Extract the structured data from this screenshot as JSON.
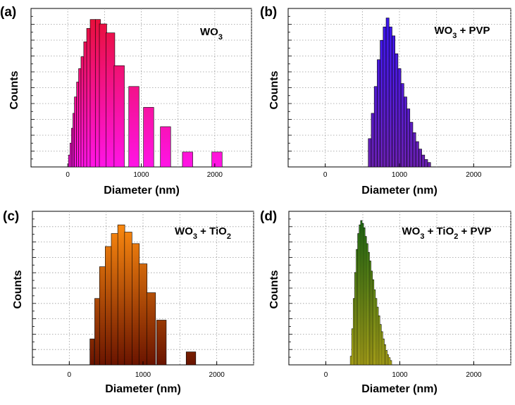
{
  "chart_data": [
    {
      "type": "bar",
      "panel_label": "(a)",
      "title_parts": [
        {
          "t": "WO"
        },
        {
          "t": "3",
          "sub": true
        }
      ],
      "xlabel": "Diameter (nm)",
      "ylabel": "Counts",
      "xlim": [
        -500,
        2500
      ],
      "xticks": [
        0,
        1000,
        2000
      ],
      "ylim": [
        0,
        100
      ],
      "grid": true,
      "colors": {
        "top": "#e8103a",
        "bottom": "#ff14e6"
      },
      "bars": [
        {
          "x": 20,
          "w": 20,
          "v": 8
        },
        {
          "x": 40,
          "w": 20,
          "v": 16
        },
        {
          "x": 60,
          "w": 20,
          "v": 26
        },
        {
          "x": 80,
          "w": 20,
          "v": 36
        },
        {
          "x": 105,
          "w": 30,
          "v": 47
        },
        {
          "x": 135,
          "w": 30,
          "v": 57
        },
        {
          "x": 165,
          "w": 35,
          "v": 66
        },
        {
          "x": 200,
          "w": 40,
          "v": 74
        },
        {
          "x": 240,
          "w": 45,
          "v": 84
        },
        {
          "x": 285,
          "w": 55,
          "v": 93
        },
        {
          "x": 340,
          "w": 70,
          "v": 99
        },
        {
          "x": 410,
          "w": 70,
          "v": 99
        },
        {
          "x": 480,
          "w": 100,
          "v": 96
        },
        {
          "x": 580,
          "w": 120,
          "v": 90
        },
        {
          "x": 700,
          "w": 140,
          "v": 68
        },
        {
          "x": 900,
          "w": 140,
          "v": 54
        },
        {
          "x": 1100,
          "w": 140,
          "v": 40
        },
        {
          "x": 1330,
          "w": 140,
          "v": 27
        },
        {
          "x": 1630,
          "w": 140,
          "v": 10
        },
        {
          "x": 2030,
          "w": 140,
          "v": 10
        }
      ]
    },
    {
      "type": "bar",
      "panel_label": "(b)",
      "title_parts": [
        {
          "t": "WO"
        },
        {
          "t": "3",
          "sub": true
        },
        {
          "t": " + PVP"
        }
      ],
      "xlabel": "Diameter (nm)",
      "ylabel": "Counts",
      "xlim": [
        -500,
        2500
      ],
      "xticks": [
        0,
        1000,
        2000
      ],
      "ylim": [
        0,
        100
      ],
      "grid": true,
      "colors": {
        "top": "#3a16f0",
        "bottom": "#6a20b0"
      },
      "bars": [
        {
          "x": 600,
          "w": 40,
          "v": 19
        },
        {
          "x": 640,
          "w": 40,
          "v": 36
        },
        {
          "x": 680,
          "w": 40,
          "v": 54
        },
        {
          "x": 720,
          "w": 40,
          "v": 72
        },
        {
          "x": 760,
          "w": 40,
          "v": 85
        },
        {
          "x": 800,
          "w": 40,
          "v": 94
        },
        {
          "x": 840,
          "w": 40,
          "v": 100
        },
        {
          "x": 880,
          "w": 40,
          "v": 94
        },
        {
          "x": 920,
          "w": 40,
          "v": 88
        },
        {
          "x": 960,
          "w": 40,
          "v": 76
        },
        {
          "x": 1000,
          "w": 40,
          "v": 66
        },
        {
          "x": 1040,
          "w": 40,
          "v": 56
        },
        {
          "x": 1080,
          "w": 40,
          "v": 47
        },
        {
          "x": 1120,
          "w": 40,
          "v": 39
        },
        {
          "x": 1160,
          "w": 40,
          "v": 30
        },
        {
          "x": 1200,
          "w": 40,
          "v": 23
        },
        {
          "x": 1240,
          "w": 40,
          "v": 17
        },
        {
          "x": 1280,
          "w": 40,
          "v": 12
        },
        {
          "x": 1320,
          "w": 40,
          "v": 8
        },
        {
          "x": 1360,
          "w": 40,
          "v": 5
        },
        {
          "x": 1400,
          "w": 40,
          "v": 3
        }
      ]
    },
    {
      "type": "bar",
      "panel_label": "(c)",
      "title_parts": [
        {
          "t": "WO"
        },
        {
          "t": "3",
          "sub": true
        },
        {
          "t": " + TiO"
        },
        {
          "t": "2",
          "sub": true
        }
      ],
      "xlabel": "Diameter (nm)",
      "ylabel": "Counts",
      "xlim": [
        -500,
        2500
      ],
      "xticks": [
        0,
        1000,
        2000
      ],
      "ylim": [
        0,
        100
      ],
      "grid": true,
      "colors": {
        "top": "#ff8c10",
        "bottom": "#6a1400"
      },
      "bars": [
        {
          "x": 310,
          "w": 60,
          "v": 18
        },
        {
          "x": 380,
          "w": 70,
          "v": 46
        },
        {
          "x": 450,
          "w": 80,
          "v": 68
        },
        {
          "x": 530,
          "w": 85,
          "v": 82
        },
        {
          "x": 615,
          "w": 90,
          "v": 91
        },
        {
          "x": 705,
          "w": 95,
          "v": 97
        },
        {
          "x": 800,
          "w": 100,
          "v": 92
        },
        {
          "x": 900,
          "w": 100,
          "v": 84
        },
        {
          "x": 1000,
          "w": 110,
          "v": 70
        },
        {
          "x": 1110,
          "w": 120,
          "v": 50
        },
        {
          "x": 1250,
          "w": 130,
          "v": 31
        },
        {
          "x": 1650,
          "w": 130,
          "v": 9
        }
      ]
    },
    {
      "type": "bar",
      "panel_label": "(d)",
      "title_parts": [
        {
          "t": "WO"
        },
        {
          "t": "3",
          "sub": true
        },
        {
          "t": " + TiO"
        },
        {
          "t": "2",
          "sub": true
        },
        {
          "t": " + PVP"
        }
      ],
      "xlabel": "Diameter (nm)",
      "ylabel": "Counts",
      "xlim": [
        -500,
        2500
      ],
      "xticks": [
        0,
        1000,
        2000
      ],
      "ylim": [
        0,
        100
      ],
      "grid": true,
      "colors": {
        "top": "#2a8a1a",
        "bottom": "#d8d020"
      },
      "bars": [
        {
          "x": 340,
          "w": 20,
          "v": 6
        },
        {
          "x": 360,
          "w": 20,
          "v": 25
        },
        {
          "x": 380,
          "w": 20,
          "v": 46
        },
        {
          "x": 400,
          "w": 20,
          "v": 64
        },
        {
          "x": 420,
          "w": 20,
          "v": 80
        },
        {
          "x": 440,
          "w": 20,
          "v": 91
        },
        {
          "x": 460,
          "w": 20,
          "v": 97
        },
        {
          "x": 480,
          "w": 20,
          "v": 100
        },
        {
          "x": 500,
          "w": 20,
          "v": 98
        },
        {
          "x": 520,
          "w": 20,
          "v": 95
        },
        {
          "x": 540,
          "w": 20,
          "v": 89
        },
        {
          "x": 560,
          "w": 20,
          "v": 84
        },
        {
          "x": 580,
          "w": 20,
          "v": 78
        },
        {
          "x": 600,
          "w": 20,
          "v": 72
        },
        {
          "x": 620,
          "w": 20,
          "v": 65
        },
        {
          "x": 640,
          "w": 20,
          "v": 59
        },
        {
          "x": 660,
          "w": 20,
          "v": 52
        },
        {
          "x": 680,
          "w": 20,
          "v": 46
        },
        {
          "x": 700,
          "w": 20,
          "v": 40
        },
        {
          "x": 720,
          "w": 20,
          "v": 34
        },
        {
          "x": 740,
          "w": 20,
          "v": 28
        },
        {
          "x": 760,
          "w": 20,
          "v": 23
        },
        {
          "x": 780,
          "w": 20,
          "v": 18
        },
        {
          "x": 800,
          "w": 20,
          "v": 14
        },
        {
          "x": 820,
          "w": 20,
          "v": 10
        },
        {
          "x": 840,
          "w": 20,
          "v": 7
        },
        {
          "x": 860,
          "w": 20,
          "v": 5
        },
        {
          "x": 880,
          "w": 20,
          "v": 3
        }
      ]
    }
  ]
}
